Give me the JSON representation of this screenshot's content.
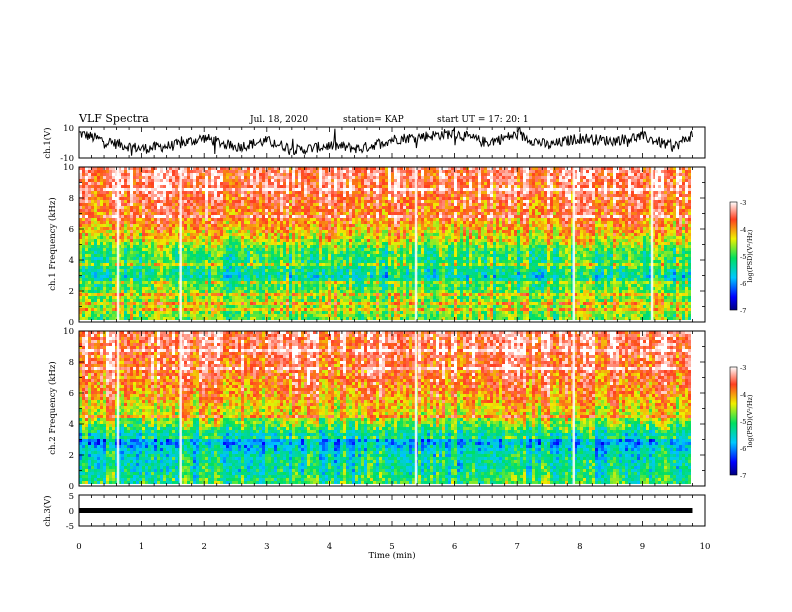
{
  "header": {
    "title": "VLF Spectra",
    "date": "Jul. 18, 2020",
    "station": "station= KAP",
    "start": "start  UT  =   17: 20: 1"
  },
  "colors": {
    "low": "#0000cc",
    "mid_low": "#00c8ff",
    "mid": "#00e060",
    "mid_high": "#f0f000",
    "high": "#ee2020",
    "trace": "#000000"
  },
  "chart_data": [
    {
      "type": "line",
      "name": "ch1-waveform",
      "ylabel": "ch.1(V)",
      "ylim": [
        -10,
        10
      ],
      "yticks": [
        "10",
        "-10"
      ],
      "x": [
        0,
        0.5,
        1,
        1.5,
        2,
        2.5,
        3,
        3.5,
        4,
        4.5,
        5,
        5.5,
        6,
        6.5,
        7,
        7.5,
        8,
        8.5,
        9,
        9.5,
        9.8
      ],
      "values": [
        6,
        0,
        -4,
        -2,
        3,
        -3,
        1,
        -5,
        -2,
        -4,
        2,
        4,
        6,
        0,
        5,
        -2,
        3,
        1,
        4,
        -3,
        5
      ]
    },
    {
      "type": "heatmap",
      "name": "ch1-spectrogram",
      "ylabel": "ch.1 Frequency (kHz)",
      "ylim": [
        0,
        10
      ],
      "yticks": [
        "0",
        "2",
        "4",
        "6",
        "8",
        "10"
      ],
      "colorbar_label": "log(PSD)(V²/Hz)",
      "colorbar_range": [
        -7,
        -3
      ],
      "colorbar_ticks": [
        "-3",
        "-4",
        "-5",
        "-6",
        "-7"
      ],
      "band_profile": [
        {
          "freq": 0.0,
          "level": -4.8
        },
        {
          "freq": 1.0,
          "level": -4.6
        },
        {
          "freq": 2.0,
          "level": -4.8
        },
        {
          "freq": 2.8,
          "level": -5.4
        },
        {
          "freq": 3.5,
          "level": -5.1
        },
        {
          "freq": 4.5,
          "level": -5.0
        },
        {
          "freq": 5.2,
          "level": -4.4
        },
        {
          "freq": 6.5,
          "level": -3.9
        },
        {
          "freq": 8.0,
          "level": -3.6
        },
        {
          "freq": 10.0,
          "level": -3.4
        }
      ],
      "bright_lines_min": [
        0.62,
        1.62,
        5.38,
        7.9,
        9.15
      ]
    },
    {
      "type": "heatmap",
      "name": "ch2-spectrogram",
      "ylabel": "ch.2 Frequency (kHz)",
      "ylim": [
        0,
        10
      ],
      "yticks": [
        "0",
        "2",
        "4",
        "6",
        "8",
        "10"
      ],
      "colorbar_label": "log(PSD)(V²/Hz)",
      "colorbar_range": [
        -7,
        -3
      ],
      "colorbar_ticks": [
        "-3",
        "-4",
        "-5",
        "-6",
        "-7"
      ],
      "band_profile": [
        {
          "freq": 0.0,
          "level": -5.0
        },
        {
          "freq": 1.0,
          "level": -5.3
        },
        {
          "freq": 2.0,
          "level": -5.4
        },
        {
          "freq": 2.8,
          "level": -5.9
        },
        {
          "freq": 3.6,
          "level": -5.0
        },
        {
          "freq": 4.5,
          "level": -4.4
        },
        {
          "freq": 6.0,
          "level": -3.9
        },
        {
          "freq": 8.0,
          "level": -3.6
        },
        {
          "freq": 10.0,
          "level": -3.4
        }
      ],
      "bright_lines_min": [
        0.62,
        1.62,
        5.38,
        7.9
      ]
    },
    {
      "type": "line",
      "name": "ch3-waveform",
      "ylabel": "ch.3(V)",
      "ylim": [
        -5,
        5
      ],
      "yticks": [
        "5",
        "0",
        "-5"
      ],
      "x": [
        0,
        9.8
      ],
      "values": [
        0,
        0
      ]
    }
  ],
  "xaxis": {
    "label": "Time (min)",
    "range": [
      0,
      10
    ],
    "ticks": [
      "0",
      "1",
      "2",
      "3",
      "4",
      "5",
      "6",
      "7",
      "8",
      "9",
      "10"
    ]
  }
}
